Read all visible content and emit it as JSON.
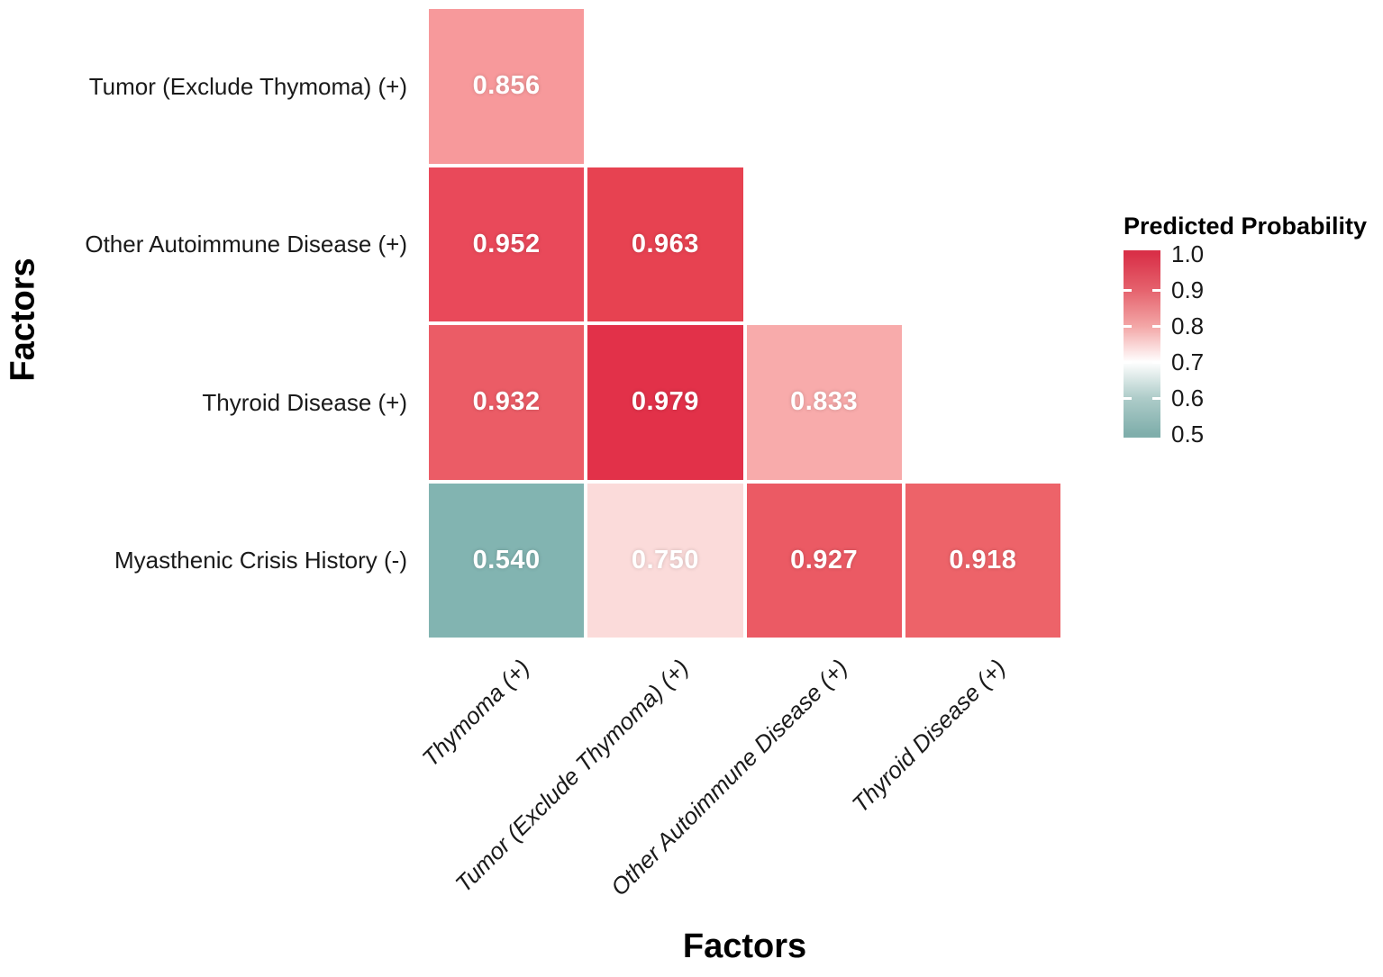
{
  "figure": {
    "y_axis_title": "Factors",
    "x_axis_title": "Factors",
    "y_categories": [
      "Tumor (Exclude Thymoma) (+)",
      "Other Autoimmune Disease (+)",
      "Thyroid Disease (+)",
      "Myasthenic Crisis History (-)"
    ],
    "x_categories": [
      "Thymoma (+)",
      "Tumor (Exclude Thymoma) (+)",
      "Other Autoimmune Disease (+)",
      "Thyroid Disease (+)"
    ],
    "cells": [
      {
        "row": 0,
        "col": 0,
        "label": "0.856",
        "color": "#F7999B"
      },
      {
        "row": 1,
        "col": 0,
        "label": "0.952",
        "color": "#E9495A"
      },
      {
        "row": 1,
        "col": 1,
        "label": "0.963",
        "color": "#E74251"
      },
      {
        "row": 2,
        "col": 0,
        "label": "0.932",
        "color": "#EB5C66"
      },
      {
        "row": 2,
        "col": 1,
        "label": "0.979",
        "color": "#E23149"
      },
      {
        "row": 2,
        "col": 2,
        "label": "0.833",
        "color": "#F8ABAB"
      },
      {
        "row": 3,
        "col": 0,
        "label": "0.540",
        "color": "#82B4B1"
      },
      {
        "row": 3,
        "col": 1,
        "label": "0.750",
        "color": "#FBDBDA"
      },
      {
        "row": 3,
        "col": 2,
        "label": "0.927",
        "color": "#EB5A64"
      },
      {
        "row": 3,
        "col": 3,
        "label": "0.918",
        "color": "#ED6369"
      }
    ],
    "legend": {
      "title": "Predicted Probability",
      "stops": [
        {
          "value": 1.0,
          "label": "1.0",
          "color": "#D93048"
        },
        {
          "value": 0.9,
          "label": "0.9",
          "color": "#E5626D"
        },
        {
          "value": 0.8,
          "label": "0.8",
          "color": "#F3A6A6"
        },
        {
          "value": 0.7,
          "label": "0.7",
          "color": "#FFFFFF"
        },
        {
          "value": 0.6,
          "label": "0.6",
          "color": "#AECCC9"
        },
        {
          "value": 0.5,
          "label": "0.5",
          "color": "#7FAEAB"
        }
      ]
    },
    "text_color": "#1A1A1A",
    "value_text_color": "#FFFFFF",
    "background_color": "#FFFFFF"
  },
  "chart_data": {
    "type": "heatmap",
    "title": "",
    "xlabel": "Factors",
    "ylabel": "Factors",
    "x_categories": [
      "Thymoma (+)",
      "Tumor (Exclude Thymoma) (+)",
      "Other Autoimmune Disease (+)",
      "Thyroid Disease (+)"
    ],
    "y_categories": [
      "Tumor (Exclude Thymoma) (+)",
      "Other Autoimmune Disease (+)",
      "Thyroid Disease (+)",
      "Myasthenic Crisis History (-)"
    ],
    "values": [
      [
        0.856,
        null,
        null,
        null
      ],
      [
        0.952,
        0.963,
        null,
        null
      ],
      [
        0.932,
        0.979,
        0.833,
        null
      ],
      [
        0.54,
        0.75,
        0.927,
        0.918
      ]
    ],
    "colorbar": {
      "title": "Predicted Probability",
      "range": [
        0.5,
        1.0
      ],
      "tick_labels": [
        "1.0",
        "0.9",
        "0.8",
        "0.7",
        "0.6",
        "0.5"
      ],
      "low_color": "#7FAEAB",
      "mid_color": "#FFFFFF",
      "high_color": "#D93048",
      "midpoint": 0.7,
      "position": "right"
    },
    "grid": false,
    "legend_position": "right",
    "shape": "lower-triangle"
  }
}
